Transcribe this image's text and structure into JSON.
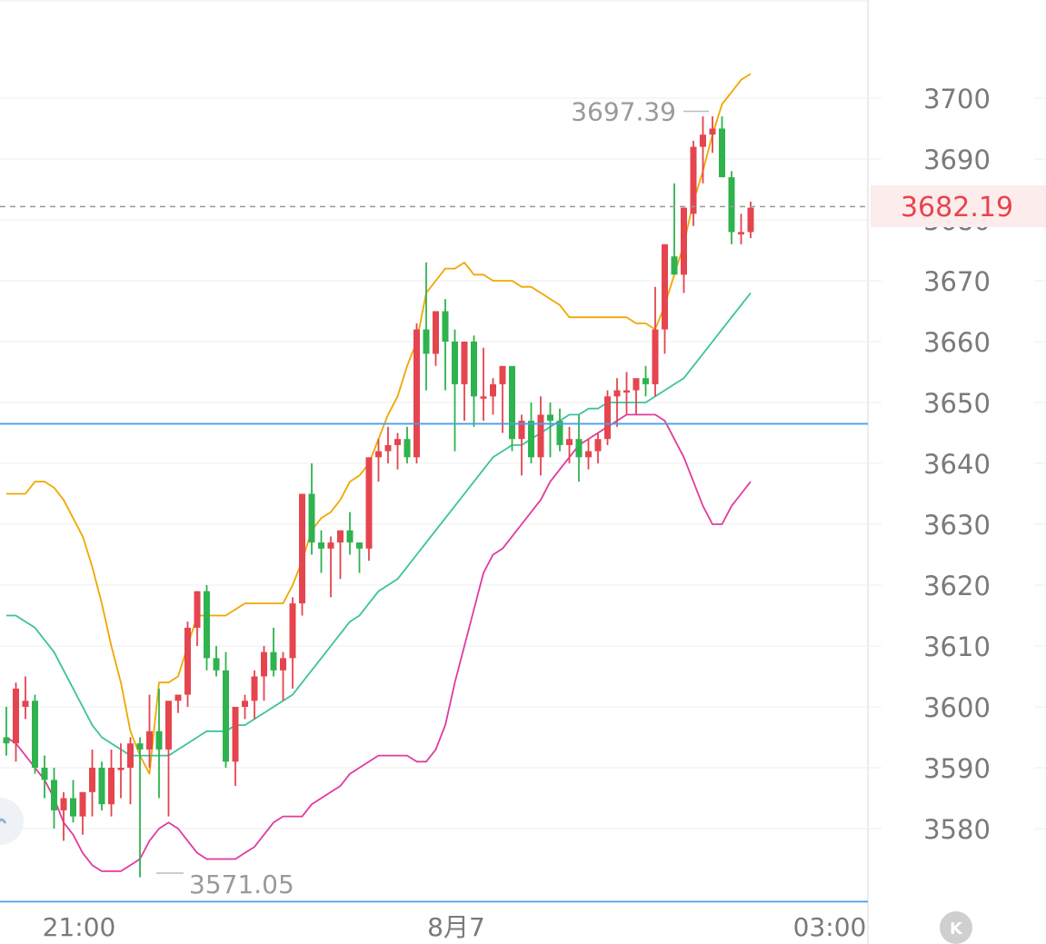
{
  "chart_data": {
    "type": "candlestick",
    "y_axis": {
      "ticks": [
        3580,
        3590,
        3600,
        3610,
        3620,
        3630,
        3640,
        3650,
        3660,
        3670,
        3680,
        3690,
        3700
      ],
      "position": "right"
    },
    "x_axis": {
      "tick_labels": [
        "21:00",
        "8月7",
        "03:00"
      ]
    },
    "current_price": "3682.19",
    "max_label": "3697.39",
    "min_label": "3571.05",
    "horizontal_line_price": 3646.5,
    "bottom_line_price": 3568.0,
    "candles": [
      [
        3595,
        3600,
        3592,
        3594
      ],
      [
        3594,
        3604,
        3591,
        3603
      ],
      [
        3600,
        3605,
        3598,
        3601
      ],
      [
        3601,
        3602,
        3589,
        3590
      ],
      [
        3590,
        3592,
        3585,
        3588
      ],
      [
        3588,
        3590,
        3580,
        3583
      ],
      [
        3583,
        3586,
        3578,
        3585
      ],
      [
        3585,
        3588,
        3581,
        3582
      ],
      [
        3582,
        3586,
        3579,
        3586
      ],
      [
        3586,
        3593,
        3582,
        3590
      ],
      [
        3590,
        3591,
        3583,
        3584
      ],
      [
        3584,
        3593,
        3582,
        3590
      ],
      [
        3590,
        3594,
        3585,
        3590
      ],
      [
        3590,
        3595,
        3584,
        3594
      ],
      [
        3594,
        3595,
        3572,
        3593
      ],
      [
        3593,
        3602,
        3590,
        3596
      ],
      [
        3596,
        3603,
        3585,
        3593
      ],
      [
        3593,
        3601,
        3582,
        3601
      ],
      [
        3601,
        3602,
        3599,
        3602
      ],
      [
        3602,
        3614,
        3600,
        3613
      ],
      [
        3613,
        3619,
        3610,
        3619
      ],
      [
        3619,
        3620,
        3606,
        3608
      ],
      [
        3608,
        3610,
        3605,
        3606
      ],
      [
        3606,
        3609,
        3590,
        3591
      ],
      [
        3591,
        3600,
        3587,
        3600
      ],
      [
        3600,
        3602,
        3598,
        3601
      ],
      [
        3601,
        3606,
        3598,
        3605
      ],
      [
        3605,
        3610,
        3601,
        3609
      ],
      [
        3609,
        3613,
        3605,
        3606
      ],
      [
        3606,
        3609,
        3601,
        3608
      ],
      [
        3608,
        3618,
        3603,
        3617
      ],
      [
        3617,
        3635,
        3615,
        3635
      ],
      [
        3635,
        3640,
        3625,
        3627
      ],
      [
        3627,
        3629,
        3622,
        3626
      ],
      [
        3626,
        3628,
        3618,
        3627
      ],
      [
        3627,
        3629,
        3621,
        3629
      ],
      [
        3629,
        3632,
        3625,
        3627
      ],
      [
        3627,
        3627,
        3622,
        3626
      ],
      [
        3626,
        3641,
        3624,
        3641
      ],
      [
        3641,
        3644,
        3637,
        3642
      ],
      [
        3642,
        3646,
        3640,
        3643
      ],
      [
        3643,
        3645,
        3639,
        3644
      ],
      [
        3644,
        3646,
        3640,
        3641
      ],
      [
        3641,
        3663,
        3640,
        3662
      ],
      [
        3662,
        3673,
        3652,
        3658
      ],
      [
        3658,
        3664,
        3656,
        3665
      ],
      [
        3665,
        3667,
        3652,
        3660
      ],
      [
        3660,
        3662,
        3642,
        3653
      ],
      [
        3653,
        3660,
        3647,
        3660
      ],
      [
        3660,
        3661,
        3646,
        3651
      ],
      [
        3651,
        3659,
        3647,
        3651
      ],
      [
        3651,
        3654,
        3648,
        3653
      ],
      [
        3653,
        3656,
        3645,
        3656
      ],
      [
        3656,
        3655,
        3642,
        3644
      ],
      [
        3644,
        3648,
        3638,
        3647
      ],
      [
        3647,
        3650,
        3640,
        3641
      ],
      [
        3641,
        3651,
        3638,
        3648
      ],
      [
        3648,
        3650,
        3641,
        3647
      ],
      [
        3647,
        3649,
        3642,
        3643
      ],
      [
        3643,
        3646,
        3640,
        3644
      ],
      [
        3644,
        3648,
        3637,
        3641
      ],
      [
        3641,
        3644,
        3639,
        3642
      ],
      [
        3642,
        3645,
        3640,
        3644
      ],
      [
        3644,
        3652,
        3643,
        3651
      ],
      [
        3651,
        3654,
        3646,
        3652
      ],
      [
        3652,
        3655,
        3648,
        3652
      ],
      [
        3652,
        3653,
        3648,
        3654
      ],
      [
        3654,
        3656,
        3651,
        3653
      ],
      [
        3653,
        3669,
        3651,
        3662
      ],
      [
        3662,
        3676,
        3658,
        3676
      ],
      [
        3674,
        3686,
        3672,
        3671
      ],
      [
        3671,
        3682,
        3668,
        3682
      ],
      [
        3681,
        3693,
        3679,
        3692
      ],
      [
        3692,
        3697,
        3686,
        3694
      ],
      [
        3694,
        3697,
        3691,
        3695
      ],
      [
        3695,
        3697,
        3687,
        3687
      ],
      [
        3687,
        3688,
        3676,
        3678
      ],
      [
        3678,
        3681,
        3676,
        3678
      ],
      [
        3678,
        3683,
        3677,
        3682
      ]
    ],
    "series": [
      {
        "name": "upper",
        "color": "#f0a800",
        "values": [
          3635,
          3635,
          3635,
          3637,
          3637,
          3636,
          3634,
          3631,
          3628,
          3623,
          3617,
          3610,
          3604,
          3596,
          3592,
          3589,
          3604,
          3604,
          3605,
          3610,
          3615,
          3615,
          3615,
          3615,
          3616,
          3617,
          3617,
          3617,
          3617,
          3617,
          3620,
          3624,
          3629,
          3631,
          3632,
          3634,
          3637,
          3638,
          3640,
          3644,
          3648,
          3651,
          3656,
          3660,
          3668,
          3670,
          3672,
          3672,
          3673,
          3671,
          3671,
          3670,
          3670,
          3670,
          3669,
          3669,
          3668,
          3667,
          3666,
          3664,
          3664,
          3664,
          3664,
          3664,
          3664,
          3664,
          3663,
          3663,
          3662,
          3666,
          3671,
          3676,
          3683,
          3688,
          3694,
          3699,
          3701,
          3703,
          3704
        ]
      },
      {
        "name": "middle",
        "color": "#3cc39c",
        "values": [
          3615,
          3615,
          3614,
          3613,
          3611,
          3609,
          3606,
          3603,
          3600,
          3597,
          3595,
          3594,
          3593,
          3592,
          3592,
          3592,
          3592,
          3592,
          3593,
          3594,
          3595,
          3596,
          3596,
          3596,
          3597,
          3597,
          3598,
          3599,
          3600,
          3601,
          3602,
          3604,
          3606,
          3608,
          3610,
          3612,
          3614,
          3615,
          3617,
          3619,
          3620,
          3621,
          3623,
          3625,
          3627,
          3629,
          3631,
          3633,
          3635,
          3637,
          3639,
          3641,
          3642,
          3643,
          3643,
          3644,
          3645,
          3646,
          3647,
          3648,
          3648,
          3649,
          3649,
          3650,
          3650,
          3650,
          3650,
          3650,
          3651,
          3652,
          3653,
          3654,
          3656,
          3658,
          3660,
          3662,
          3664,
          3666,
          3668
        ]
      },
      {
        "name": "lower",
        "color": "#e03c9e",
        "values": [
          3595,
          3594,
          3592,
          3590,
          3588,
          3585,
          3581,
          3579,
          3576,
          3574,
          3573,
          3573,
          3573,
          3574,
          3575,
          3578,
          3580,
          3581,
          3580,
          3578,
          3576,
          3575,
          3575,
          3575,
          3575,
          3576,
          3577,
          3579,
          3581,
          3582,
          3582,
          3582,
          3584,
          3585,
          3586,
          3587,
          3589,
          3590,
          3591,
          3592,
          3592,
          3592,
          3592,
          3591,
          3591,
          3593,
          3597,
          3604,
          3610,
          3616,
          3622,
          3625,
          3626,
          3628,
          3630,
          3632,
          3634,
          3637,
          3639,
          3641,
          3643,
          3644,
          3645,
          3646,
          3647,
          3648,
          3648,
          3648,
          3648,
          3647,
          3644,
          3641,
          3637,
          3633,
          3630,
          3630,
          3633,
          3635,
          3637
        ]
      }
    ],
    "colors": {
      "up": "#e5454f",
      "down": "#2fb34f",
      "hline": "#4a9fe8",
      "grid": "#eeeeee"
    }
  }
}
